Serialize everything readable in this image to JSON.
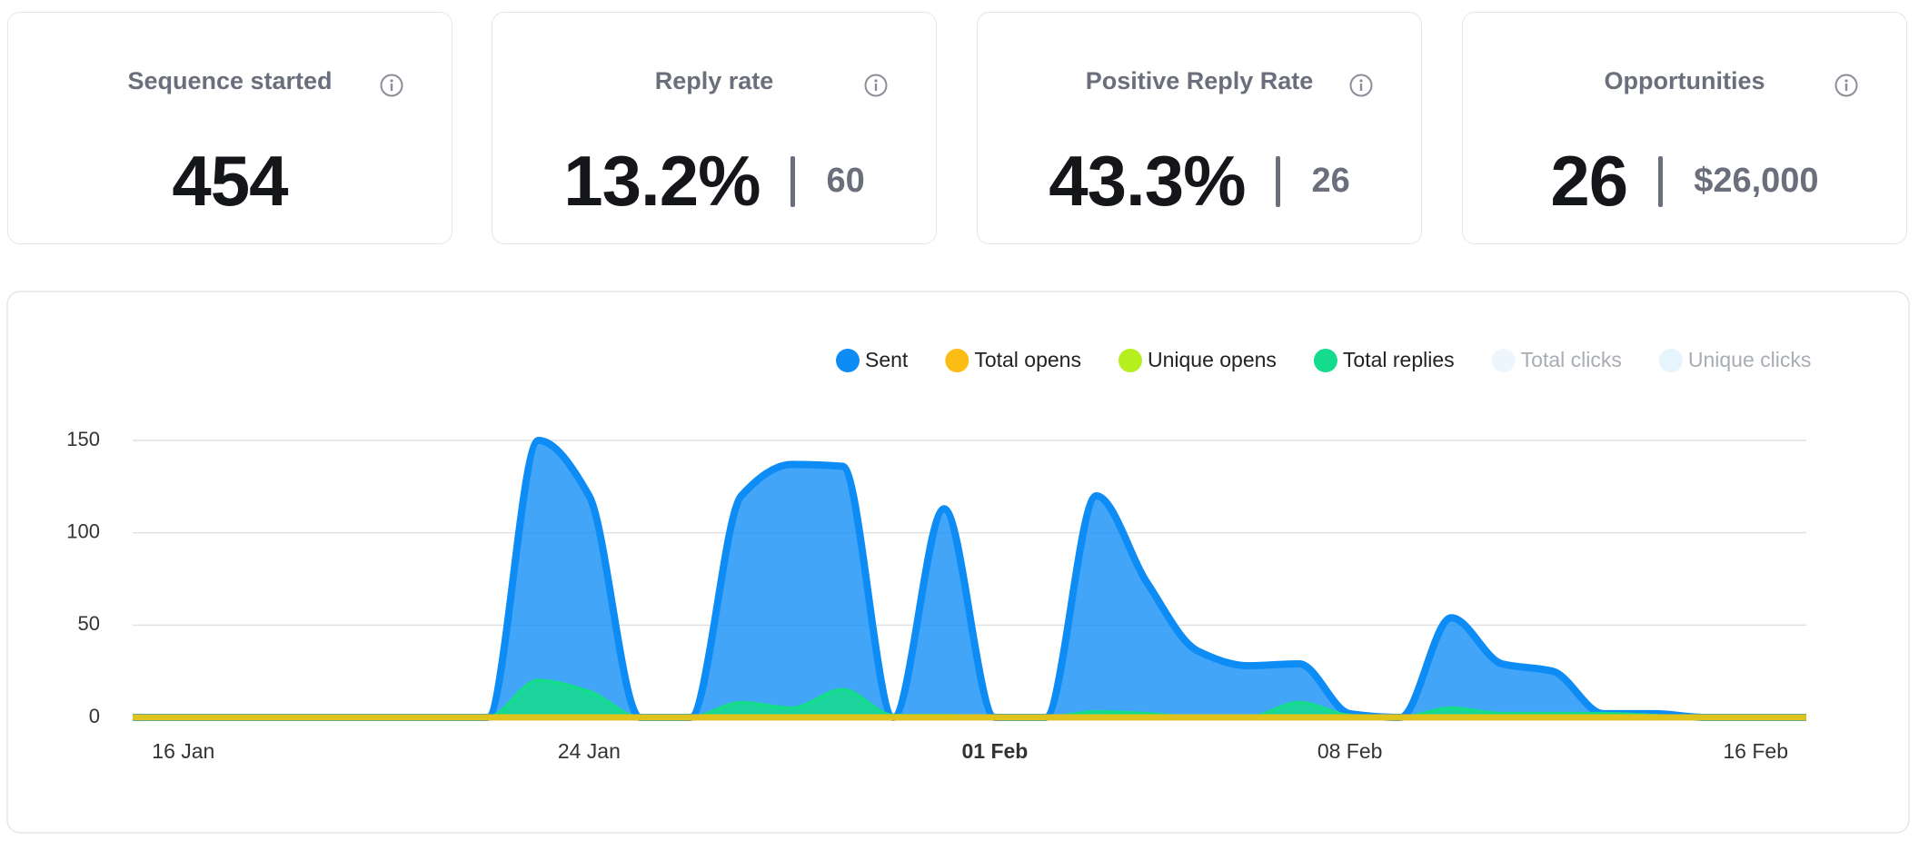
{
  "cards": [
    {
      "title": "Sequence started",
      "value": "454"
    },
    {
      "title": "Reply rate",
      "value": "13.2%",
      "secondary": "60"
    },
    {
      "title": "Positive Reply Rate",
      "value": "43.3%",
      "secondary": "26"
    },
    {
      "title": "Opportunities",
      "value": "26",
      "secondary": "$26,000"
    }
  ],
  "chart_data": {
    "type": "area",
    "x": [
      null,
      "16 Jan",
      null,
      null,
      null,
      null,
      null,
      null,
      null,
      "24 Jan",
      null,
      null,
      null,
      null,
      null,
      null,
      null,
      "01 Feb",
      null,
      null,
      null,
      null,
      null,
      null,
      "08 Feb",
      null,
      null,
      null,
      null,
      null,
      null,
      null,
      "16 Feb",
      null
    ],
    "bold_x_index": 17,
    "ylim": [
      0,
      150
    ],
    "yticks": [
      0,
      50,
      100,
      150
    ],
    "grid": true,
    "series": [
      {
        "name": "Sent",
        "color": "#0d8cf6",
        "values": [
          0,
          0,
          0,
          0,
          0,
          0,
          0,
          0,
          150,
          120,
          0,
          0,
          120,
          137,
          136,
          0,
          113,
          0,
          0,
          120,
          73,
          36,
          28,
          29,
          2,
          0,
          54,
          29,
          25,
          2,
          2,
          0,
          0,
          0
        ]
      },
      {
        "name": "Total opens",
        "color": "#fbbd14",
        "values": [
          0,
          0,
          0,
          0,
          0,
          0,
          0,
          0,
          0,
          0,
          0,
          0,
          0,
          0,
          0,
          0,
          0,
          0,
          0,
          0,
          0,
          0,
          0,
          0,
          0,
          0,
          0,
          0,
          0,
          0,
          0,
          0,
          0,
          0
        ]
      },
      {
        "name": "Unique opens",
        "color": "#b5f01e",
        "values": [
          0,
          0,
          0,
          0,
          0,
          0,
          0,
          0,
          0,
          0,
          0,
          0,
          0,
          0,
          0,
          0,
          0,
          0,
          0,
          0,
          0,
          0,
          0,
          0,
          0,
          0,
          0,
          0,
          0,
          0,
          0,
          0,
          0,
          0
        ]
      },
      {
        "name": "Total replies",
        "color": "#14dc8c",
        "values": [
          0,
          0,
          0,
          0,
          0,
          0,
          0,
          0,
          20,
          14,
          0,
          0,
          8,
          5,
          15,
          1,
          1,
          0,
          0,
          3,
          2,
          0,
          0,
          8,
          1,
          0,
          5,
          2,
          2,
          2,
          1,
          0,
          0,
          0
        ]
      },
      {
        "name": "Total clicks",
        "color": "#eef6fd",
        "hidden": true
      },
      {
        "name": "Unique clicks",
        "color": "#e6f4fd",
        "hidden": true
      }
    ]
  }
}
